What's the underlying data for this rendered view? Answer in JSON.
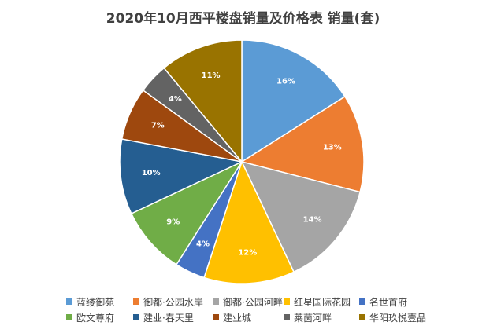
{
  "chart_data": {
    "type": "pie",
    "title": "2020年10月西平楼盘销量及价格表 销量(套)",
    "legend_position": "bottom",
    "categories": [
      "蓝缕御苑",
      "御都·公园水岸",
      "御都·公园河畔",
      "红星国际花园",
      "名世首府",
      "欧文尊府",
      "建业·春天里",
      "建业城",
      "莱茵河畔",
      "华阳玖悦壹品"
    ],
    "values": [
      16,
      13,
      14,
      12,
      4,
      9,
      10,
      7,
      4,
      11
    ],
    "labels": [
      "16%",
      "13%",
      "14%",
      "12%",
      "4%",
      "9%",
      "10%",
      "7%",
      "4%",
      "11%"
    ],
    "colors": [
      "#5B9BD5",
      "#ED7D31",
      "#A5A5A5",
      "#FFC000",
      "#4472C4",
      "#70AD47",
      "#255E91",
      "#9E480E",
      "#636363",
      "#997300"
    ]
  }
}
